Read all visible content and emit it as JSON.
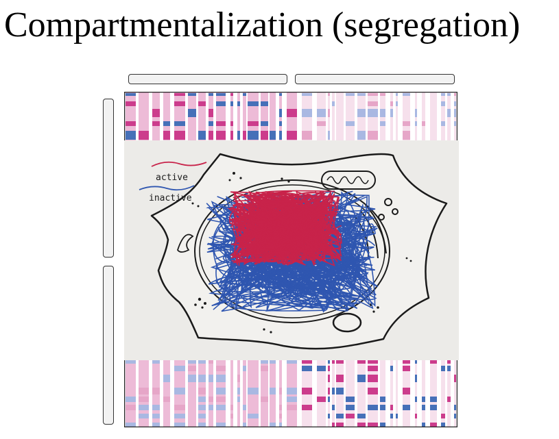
{
  "slide": {
    "title": "Compartmentalization (segregation)"
  },
  "legend": {
    "active_label": "active",
    "inactive_label": "inactive"
  },
  "colors": {
    "active_red": "#c8234a",
    "inactive_blue": "#2f56b0",
    "matrix_dark_pink": "#cc3c8c",
    "matrix_light_pink": "#e6a6c8",
    "matrix_dark_blue": "#4670b8",
    "matrix_light_blue": "#a9b8e2",
    "track_fill": "#f2f2f2"
  },
  "icons": {
    "illustration": "cell-nucleus-yarn-illustration"
  }
}
